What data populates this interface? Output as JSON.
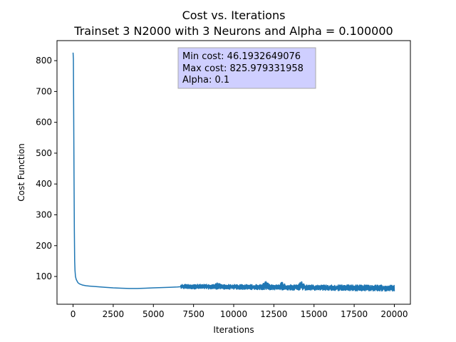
{
  "chart_data": {
    "type": "line",
    "title": "Cost vs. Iterations",
    "subtitle": "Trainset 3 N2000 with 3 Neurons and Alpha = 0.100000",
    "xlabel": "Iterations",
    "ylabel": "Cost Function",
    "xlim": [
      -1000,
      21000
    ],
    "ylim": [
      10,
      865
    ],
    "xticks": [
      0,
      2500,
      5000,
      7500,
      10000,
      12500,
      15000,
      17500,
      20000
    ],
    "yticks": [
      100,
      200,
      300,
      400,
      500,
      600,
      700,
      800
    ],
    "grid": false,
    "series_color": "#1f77b4",
    "annotation": {
      "lines": [
        "Min cost: 46.1932649076",
        "Max cost: 825.979331958",
        "Alpha: 0.1"
      ],
      "box_color": "#ccccff"
    },
    "series": [
      {
        "x": [
          0,
          20,
          40,
          60,
          80,
          100,
          120,
          150,
          200,
          300,
          400,
          600,
          800,
          1000,
          1500,
          2000,
          2500,
          3000,
          3500,
          4000,
          4500,
          5000,
          5500,
          6000,
          6500,
          6700
        ],
        "y": [
          826,
          805,
          620,
          420,
          250,
          150,
          120,
          100,
          90,
          80,
          76,
          72,
          70,
          69,
          67,
          65,
          63,
          62,
          61,
          61,
          62,
          63,
          64,
          65,
          66,
          67
        ],
        "noisy_segment": {
          "x_range": [
            6700,
            20000
          ],
          "band_start": [
            60,
            75
          ],
          "band_end": [
            52,
            72
          ],
          "spikes": [
            {
              "x": 9000,
              "high": 80
            },
            {
              "x": 12000,
              "high": 84
            },
            {
              "x": 13000,
              "high": 83
            },
            {
              "x": 14200,
              "high": 85
            },
            {
              "x": 18200,
              "high": 74
            },
            {
              "x": 19400,
              "high": 70
            }
          ]
        }
      }
    ]
  }
}
